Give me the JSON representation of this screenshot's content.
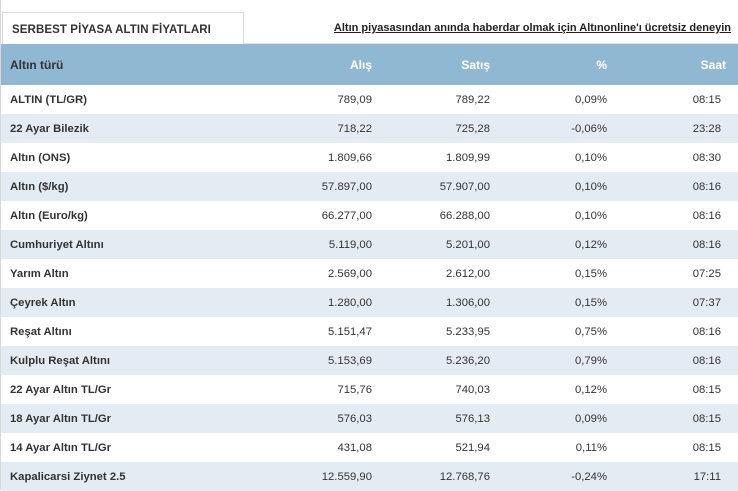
{
  "tab": {
    "title": "SERBEST PİYASA ALTIN FİYATLARI"
  },
  "promo": {
    "text": "Altın piyasasından anında haberdar olmak için Altınonline'ı ücretsiz deneyin"
  },
  "table": {
    "headers": {
      "name": "Altın türü",
      "buy": "Alış",
      "sell": "Satış",
      "pct": "%",
      "time": "Saat"
    },
    "rows": [
      {
        "name": "ALTIN (TL/GR)",
        "buy": "789,09",
        "sell": "789,22",
        "pct": "0,09%",
        "time": "08:15"
      },
      {
        "name": "22 Ayar Bilezik",
        "buy": "718,22",
        "sell": "725,28",
        "pct": "-0,06%",
        "time": "23:28"
      },
      {
        "name": "Altın (ONS)",
        "buy": "1.809,66",
        "sell": "1.809,99",
        "pct": "0,10%",
        "time": "08:30"
      },
      {
        "name": "Altın ($/kg)",
        "buy": "57.897,00",
        "sell": "57.907,00",
        "pct": "0,10%",
        "time": "08:16"
      },
      {
        "name": "Altın (Euro/kg)",
        "buy": "66.277,00",
        "sell": "66.288,00",
        "pct": "0,10%",
        "time": "08:16"
      },
      {
        "name": "Cumhuriyet Altını",
        "buy": "5.119,00",
        "sell": "5.201,00",
        "pct": "0,12%",
        "time": "08:16"
      },
      {
        "name": "Yarım Altın",
        "buy": "2.569,00",
        "sell": "2.612,00",
        "pct": "0,15%",
        "time": "07:25"
      },
      {
        "name": "Çeyrek Altın",
        "buy": "1.280,00",
        "sell": "1.306,00",
        "pct": "0,15%",
        "time": "07:37"
      },
      {
        "name": "Reşat Altını",
        "buy": "5.151,47",
        "sell": "5.233,95",
        "pct": "0,75%",
        "time": "08:16"
      },
      {
        "name": "Kulplu Reşat Altını",
        "buy": "5.153,69",
        "sell": "5.236,20",
        "pct": "0,79%",
        "time": "08:16"
      },
      {
        "name": "22 Ayar Altın TL/Gr",
        "buy": "715,76",
        "sell": "740,03",
        "pct": "0,12%",
        "time": "08:15"
      },
      {
        "name": "18 Ayar Altın TL/Gr",
        "buy": "576,03",
        "sell": "576,13",
        "pct": "0,09%",
        "time": "08:15"
      },
      {
        "name": "14 Ayar Altın TL/Gr",
        "buy": "431,08",
        "sell": "521,94",
        "pct": "0,11%",
        "time": "08:15"
      },
      {
        "name": "Kapalicarsi Ziynet 2.5",
        "buy": "12.559,90",
        "sell": "12.768,76",
        "pct": "-0,24%",
        "time": "17:11"
      }
    ]
  },
  "colors": {
    "header_bg": "#91b8d2",
    "stripe_bg": "#e4ecf3"
  }
}
